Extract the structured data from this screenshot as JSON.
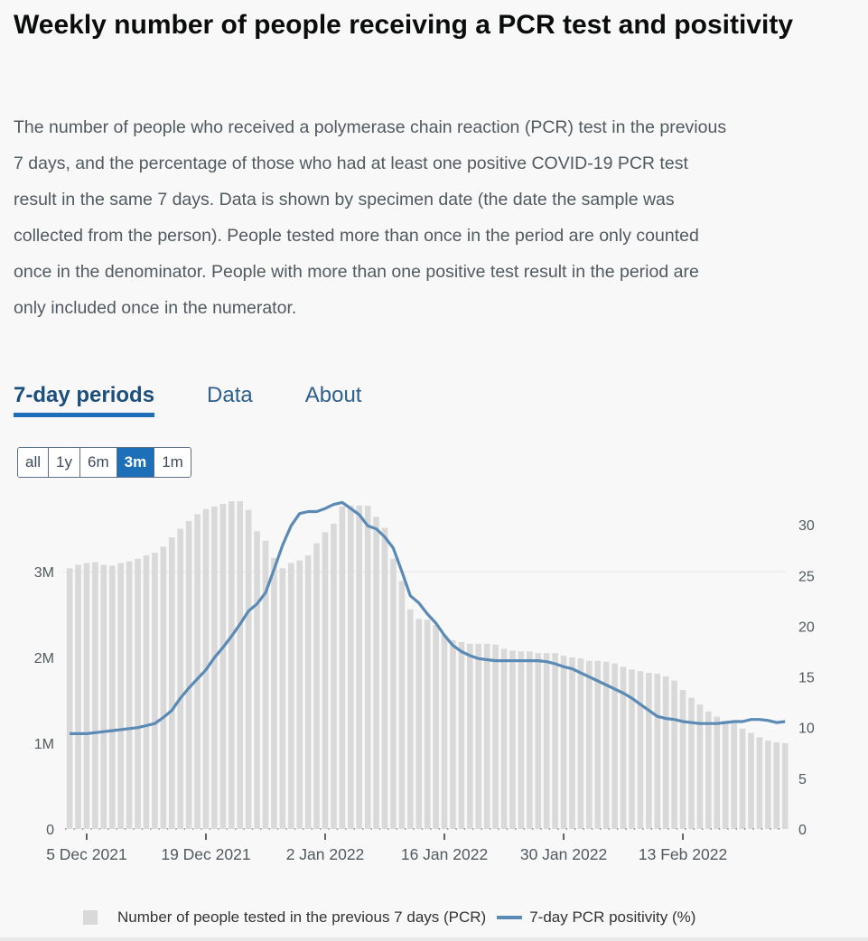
{
  "title": "Weekly number of people receiving a PCR test and positivity",
  "description": "The number of people who received a polymerase chain reaction (PCR) test in the previous 7 days, and the percentage of those who had at least one positive COVID-19 PCR test result in the same 7 days. Data is shown by specimen date (the date the sample was collected from the person). People tested more than once in the period are only counted once in the denominator. People with more than one positive test result in the period are only included once in the numerator.",
  "tabs": [
    {
      "label": "7-day periods",
      "active": true
    },
    {
      "label": "Data"
    },
    {
      "label": "About"
    }
  ],
  "ranges": [
    {
      "label": "all"
    },
    {
      "label": "1y"
    },
    {
      "label": "6m"
    },
    {
      "label": "3m",
      "active": true
    },
    {
      "label": "1m"
    }
  ],
  "colors": {
    "bars": "#d9d9d9",
    "line": "#5b8ab5",
    "accent": "#1d70b8"
  },
  "chart_data": {
    "type": "bar+line",
    "x_start_date": "2021-12-03",
    "x_interval": "1 day",
    "x_tick_labels": [
      "5 Dec 2021",
      "19 Dec 2021",
      "2 Jan 2022",
      "16 Jan 2022",
      "30 Jan 2022",
      "13 Feb 2022"
    ],
    "x_tick_day_index": [
      2,
      16,
      30,
      44,
      58,
      72
    ],
    "y_left": {
      "ticks": [
        "0",
        "1M",
        "2M",
        "3M"
      ],
      "tick_values": [
        0,
        1,
        2,
        3
      ],
      "unit": "millions",
      "range": [
        0,
        4
      ]
    },
    "y_right": {
      "ticks": [
        "0",
        "5",
        "10",
        "15",
        "20",
        "25",
        "30"
      ],
      "tick_values": [
        0,
        5,
        10,
        15,
        20,
        25,
        30
      ],
      "range": [
        0,
        33.7
      ]
    },
    "series": [
      {
        "name": "Number of people tested in the previous 7 days (PCR)",
        "type": "bar",
        "axis": "left",
        "values": [
          3.04,
          3.08,
          3.1,
          3.11,
          3.08,
          3.07,
          3.1,
          3.12,
          3.15,
          3.19,
          3.22,
          3.29,
          3.4,
          3.5,
          3.59,
          3.67,
          3.73,
          3.76,
          3.79,
          3.82,
          3.82,
          3.72,
          3.47,
          3.36,
          3.16,
          3.04,
          3.1,
          3.13,
          3.19,
          3.33,
          3.46,
          3.56,
          3.76,
          3.77,
          3.77,
          3.77,
          3.64,
          3.51,
          3.15,
          2.89,
          2.56,
          2.45,
          2.44,
          2.38,
          2.26,
          2.2,
          2.18,
          2.16,
          2.16,
          2.16,
          2.15,
          2.1,
          2.08,
          2.07,
          2.07,
          2.05,
          2.05,
          2.05,
          2.02,
          2.0,
          1.99,
          1.96,
          1.96,
          1.95,
          1.93,
          1.89,
          1.86,
          1.84,
          1.82,
          1.81,
          1.78,
          1.73,
          1.62,
          1.53,
          1.45,
          1.37,
          1.31,
          1.26,
          1.24,
          1.17,
          1.12,
          1.07,
          1.03,
          1.01,
          1.0
        ]
      },
      {
        "name": "7-day PCR positivity (%)",
        "type": "line",
        "axis": "right",
        "values": [
          9.4,
          9.4,
          9.4,
          9.5,
          9.6,
          9.7,
          9.8,
          9.9,
          10.0,
          10.2,
          10.4,
          11.0,
          11.7,
          12.9,
          13.9,
          14.8,
          15.7,
          16.9,
          17.9,
          19.0,
          20.2,
          21.5,
          22.2,
          23.3,
          25.6,
          28.0,
          29.9,
          31.1,
          31.3,
          31.3,
          31.6,
          32.0,
          32.2,
          31.6,
          31.0,
          29.9,
          29.6,
          28.8,
          27.7,
          25.4,
          23.0,
          22.3,
          21.2,
          20.3,
          19.1,
          18.1,
          17.5,
          17.1,
          16.8,
          16.7,
          16.6,
          16.6,
          16.6,
          16.6,
          16.6,
          16.6,
          16.5,
          16.3,
          16.0,
          15.8,
          15.4,
          15.0,
          14.6,
          14.2,
          13.8,
          13.4,
          12.9,
          12.3,
          11.7,
          11.1,
          10.9,
          10.8,
          10.6,
          10.5,
          10.4,
          10.4,
          10.4,
          10.5,
          10.6,
          10.6,
          10.8,
          10.8,
          10.7,
          10.5,
          10.6
        ]
      }
    ],
    "legend_position": "bottom",
    "grid": true
  }
}
